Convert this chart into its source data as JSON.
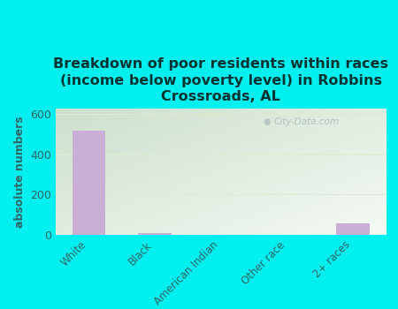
{
  "categories": [
    "White",
    "Black",
    "American Indian",
    "Other race",
    "2+ races"
  ],
  "values": [
    520,
    10,
    0,
    0,
    55
  ],
  "bar_color": "#c9aed6",
  "title": "Breakdown of poor residents within races\n(income below poverty level) in Robbins\nCrossroads, AL",
  "ylabel": "absolute numbers",
  "ylim": [
    0,
    630
  ],
  "yticks": [
    0,
    200,
    400,
    600
  ],
  "bg_color": "#00f0f0",
  "plot_bg_topleft": "#cce0cc",
  "plot_bg_bottomright": "#f0f8f0",
  "title_color": "#003333",
  "axis_color": "#336666",
  "tick_color": "#336666",
  "grid_color": "#e0ead0",
  "watermark": "City-Data.com",
  "title_fontsize": 11.5,
  "ylabel_fontsize": 9
}
